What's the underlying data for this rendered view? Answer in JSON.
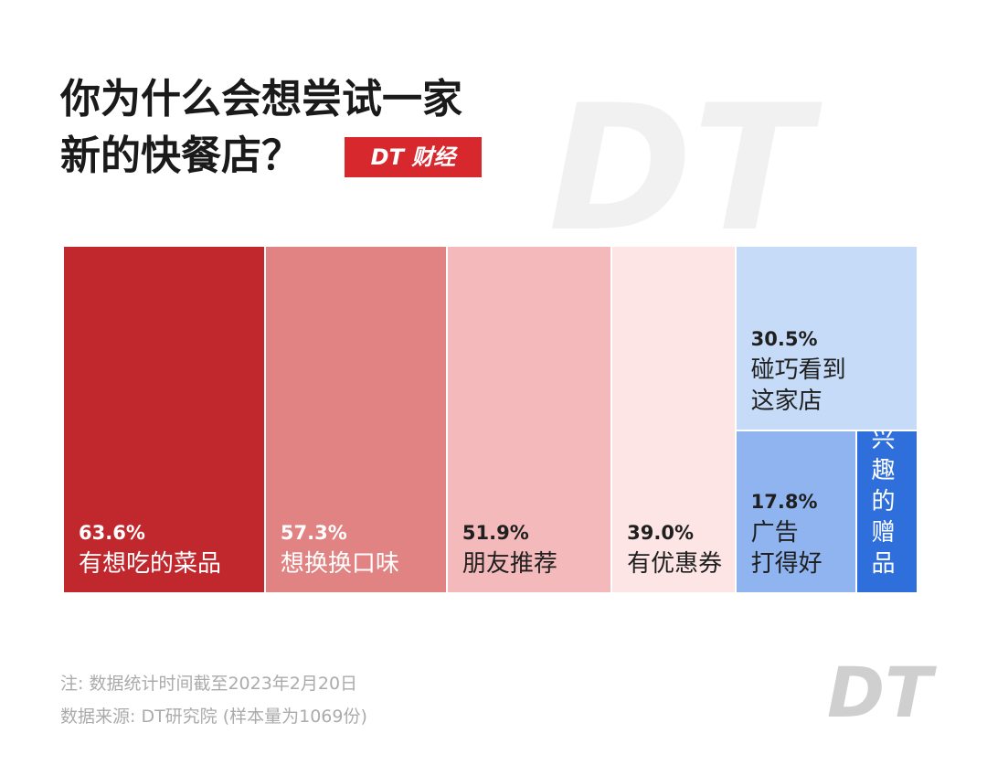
{
  "chart_data": {
    "type": "treemap",
    "title": "你为什么会想尝试一家\n新的快餐店？",
    "logo": "DT 财经",
    "watermark": "DT",
    "footer_logo": "DT",
    "categories": [
      "有想吃的菜品",
      "想换换口味",
      "朋友推荐",
      "有优惠券",
      "碰巧看到\n这家店",
      "广告\n打得好",
      "有感\n兴趣\n的\n赠品"
    ],
    "values": [
      63.6,
      57.3,
      51.9,
      39.0,
      30.5,
      17.8,
      9.1
    ],
    "value_labels": [
      "63.6%",
      "57.3%",
      "51.9%",
      "39.0%",
      "30.5%",
      "17.8%",
      null
    ],
    "colors": [
      "#c1282e",
      "#e08382",
      "#f4b9ba",
      "#fde5e5",
      "#c6dbf8",
      "#8fb4ef",
      "#2e6fdc"
    ],
    "notes": [
      "注: 数据统计时间截至2023年2月20日",
      "数据来源: DT研究院 (样本量为1069份)"
    ]
  }
}
